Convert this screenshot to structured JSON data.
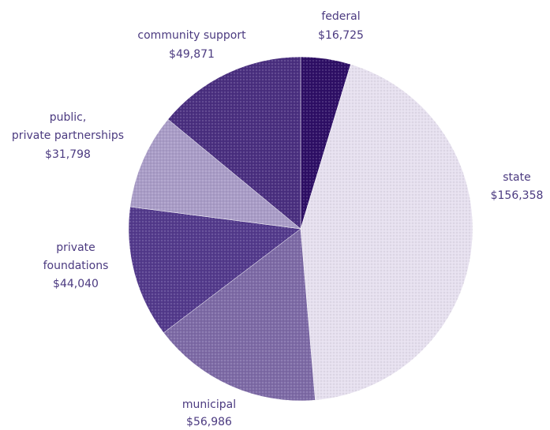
{
  "chart_data": {
    "type": "pie",
    "title": "",
    "start_angle_deg": 0,
    "direction": "clockwise",
    "slices": [
      {
        "label": "federal",
        "value_text": "$16,725",
        "value": 16725,
        "color": "#2e0f66"
      },
      {
        "label": "state",
        "value_text": "$156,358",
        "value": 156358,
        "color": "#e6e0ef"
      },
      {
        "label": "municipal",
        "value_text": "$56,986",
        "value": 56986,
        "color": "#7d6aa6"
      },
      {
        "label": "private foundations",
        "label_lines": [
          "private",
          "foundations"
        ],
        "value_text": "$44,040",
        "value": 44040,
        "color": "#533a8c"
      },
      {
        "label": "public, private partnerships",
        "label_lines": [
          "public,",
          "private partnerships"
        ],
        "value_text": "$31,798",
        "value": 31798,
        "color": "#a99cc7"
      },
      {
        "label": "community support",
        "value_text": "$49,871",
        "value": 49871,
        "color": "#4a2f80"
      }
    ]
  }
}
